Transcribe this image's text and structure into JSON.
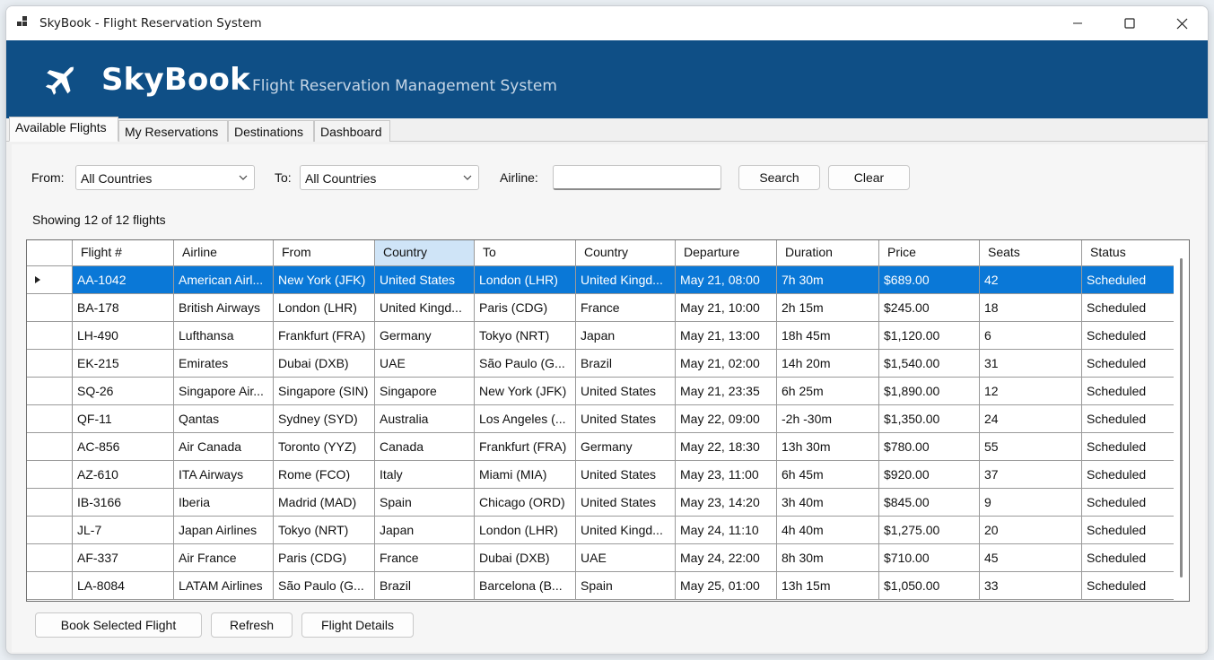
{
  "window": {
    "title": "SkyBook - Flight Reservation System"
  },
  "banner": {
    "brand": "SkyBook",
    "tagline": "Flight Reservation Management System"
  },
  "tabs": [
    {
      "label": "Available Flights",
      "active": true
    },
    {
      "label": "My Reservations",
      "active": false
    },
    {
      "label": "Destinations",
      "active": false
    },
    {
      "label": "Dashboard",
      "active": false
    }
  ],
  "filters": {
    "from_label": "From:",
    "from_value": "All Countries",
    "to_label": "To:",
    "to_value": "All Countries",
    "airline_label": "Airline:",
    "airline_value": "",
    "search_label": "Search",
    "clear_label": "Clear"
  },
  "status": {
    "text": "Showing 12 of 12 flights"
  },
  "table": {
    "columns": [
      "Flight #",
      "Airline",
      "From",
      "Country",
      "To",
      "Country",
      "Departure",
      "Duration",
      "Price",
      "Seats",
      "Status"
    ],
    "rows": [
      [
        "AA-1042",
        "American Airl...",
        "New York (JFK)",
        "United States",
        "London (LHR)",
        "United Kingd...",
        "May 21, 08:00",
        "7h 30m",
        "$689.00",
        "42",
        "Scheduled"
      ],
      [
        "BA-178",
        "British Airways",
        "London (LHR)",
        "United Kingd...",
        "Paris (CDG)",
        "France",
        "May 21, 10:00",
        "2h 15m",
        "$245.00",
        "18",
        "Scheduled"
      ],
      [
        "LH-490",
        "Lufthansa",
        "Frankfurt (FRA)",
        "Germany",
        "Tokyo (NRT)",
        "Japan",
        "May 21, 13:00",
        "18h 45m",
        "$1,120.00",
        "6",
        "Scheduled"
      ],
      [
        "EK-215",
        "Emirates",
        "Dubai (DXB)",
        "UAE",
        "São Paulo (G...",
        "Brazil",
        "May 21, 02:00",
        "14h 20m",
        "$1,540.00",
        "31",
        "Scheduled"
      ],
      [
        "SQ-26",
        "Singapore Air...",
        "Singapore (SIN)",
        "Singapore",
        "New York (JFK)",
        "United States",
        "May 21, 23:35",
        "6h 25m",
        "$1,890.00",
        "12",
        "Scheduled"
      ],
      [
        "QF-11",
        "Qantas",
        "Sydney (SYD)",
        "Australia",
        "Los Angeles (...",
        "United States",
        "May 22, 09:00",
        "-2h -30m",
        "$1,350.00",
        "24",
        "Scheduled"
      ],
      [
        "AC-856",
        "Air Canada",
        "Toronto (YYZ)",
        "Canada",
        "Frankfurt (FRA)",
        "Germany",
        "May 22, 18:30",
        "13h 30m",
        "$780.00",
        "55",
        "Scheduled"
      ],
      [
        "AZ-610",
        "ITA Airways",
        "Rome (FCO)",
        "Italy",
        "Miami (MIA)",
        "United States",
        "May 23, 11:00",
        "6h 45m",
        "$920.00",
        "37",
        "Scheduled"
      ],
      [
        "IB-3166",
        "Iberia",
        "Madrid (MAD)",
        "Spain",
        "Chicago (ORD)",
        "United States",
        "May 23, 14:20",
        "3h 40m",
        "$845.00",
        "9",
        "Scheduled"
      ],
      [
        "JL-7",
        "Japan Airlines",
        "Tokyo (NRT)",
        "Japan",
        "London (LHR)",
        "United Kingd...",
        "May 24, 11:10",
        "4h 40m",
        "$1,275.00",
        "20",
        "Scheduled"
      ],
      [
        "AF-337",
        "Air France",
        "Paris (CDG)",
        "France",
        "Dubai (DXB)",
        "UAE",
        "May 24, 22:00",
        "8h 30m",
        "$710.00",
        "45",
        "Scheduled"
      ],
      [
        "LA-8084",
        "LATAM Airlines",
        "São Paulo (G...",
        "Brazil",
        "Barcelona (B...",
        "Spain",
        "May 25, 01:00",
        "13h 15m",
        "$1,050.00",
        "33",
        "Scheduled"
      ]
    ]
  },
  "actions": {
    "book_label": "Book Selected Flight",
    "refresh_label": "Refresh",
    "details_label": "Flight Details"
  },
  "colors": {
    "banner": "#0f4f86",
    "selection": "#0a78d7",
    "header_highlight": "#cfe4f7"
  }
}
